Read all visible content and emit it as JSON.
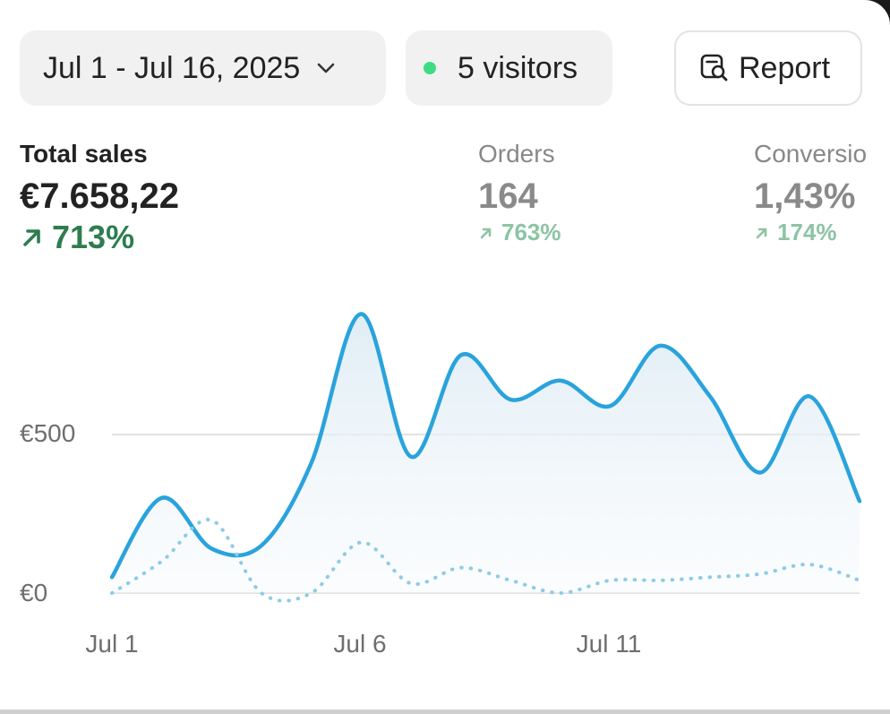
{
  "toolbar": {
    "date_range": "Jul 1 - Jul 16, 2025",
    "visitors": "5 visitors",
    "report_label": "Report"
  },
  "metrics": {
    "total_sales": {
      "label": "Total sales",
      "value": "€7.658,22",
      "change": "713%"
    },
    "orders": {
      "label": "Orders",
      "value": "164",
      "change": "763%"
    },
    "conversion": {
      "label": "Conversio",
      "value": "1,43%",
      "change": "174%"
    }
  },
  "colors": {
    "line": "#2aa3dc",
    "positive": "#2e7d4f",
    "live_dot": "#3ddc84"
  },
  "chart_data": {
    "type": "line",
    "x": [
      "Jul 1",
      "Jul 2",
      "Jul 3",
      "Jul 4",
      "Jul 5",
      "Jul 6",
      "Jul 7",
      "Jul 8",
      "Jul 9",
      "Jul 10",
      "Jul 11",
      "Jul 12",
      "Jul 13",
      "Jul 14",
      "Jul 15",
      "Jul 16"
    ],
    "x_tick_labels": [
      "Jul 1",
      "Jul 6",
      "Jul 11"
    ],
    "y_tick_labels": [
      "€0",
      "€500"
    ],
    "ylim": [
      0,
      1000
    ],
    "grid": true,
    "series": [
      {
        "values": [
          50,
          300,
          140,
          150,
          410,
          880,
          430,
          750,
          610,
          670,
          590,
          780,
          620,
          380,
          620,
          290
        ]
      },
      {
        "values": [
          0,
          100,
          230,
          0,
          0,
          160,
          30,
          80,
          40,
          0,
          40,
          40,
          50,
          60,
          90,
          40
        ]
      }
    ]
  }
}
